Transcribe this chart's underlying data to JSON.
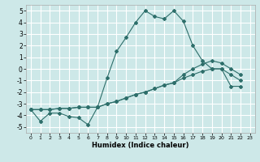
{
  "xlabel": "Humidex (Indice chaleur)",
  "bg_color": "#cde8e8",
  "grid_color": "#ffffff",
  "line_color": "#2d6e6a",
  "xlim": [
    -0.5,
    23.5
  ],
  "ylim": [
    -5.5,
    5.5
  ],
  "xticks": [
    0,
    1,
    2,
    3,
    4,
    5,
    6,
    7,
    8,
    9,
    10,
    11,
    12,
    13,
    14,
    15,
    16,
    17,
    18,
    19,
    20,
    21,
    22,
    23
  ],
  "yticks": [
    -5,
    -4,
    -3,
    -2,
    -1,
    0,
    1,
    2,
    3,
    4,
    5
  ],
  "line1_x": [
    0,
    1,
    2,
    3,
    4,
    5,
    6,
    7,
    8,
    9,
    10,
    11,
    12,
    13,
    14,
    15,
    16,
    17,
    18,
    19,
    20,
    21,
    22
  ],
  "line1_y": [
    -3.5,
    -4.5,
    -3.8,
    -3.8,
    -4.1,
    -4.2,
    -4.8,
    -3.3,
    -0.8,
    1.5,
    2.7,
    4.0,
    5.0,
    4.5,
    4.3,
    5.0,
    4.1,
    2.0,
    0.7,
    0.0,
    0.0,
    -1.5,
    -1.5
  ],
  "line2_x": [
    0,
    1,
    2,
    3,
    4,
    5,
    6,
    7,
    8,
    9,
    10,
    11,
    12,
    13,
    14,
    15,
    16,
    17,
    18,
    19,
    20,
    21,
    22
  ],
  "line2_y": [
    -3.5,
    -3.5,
    -3.5,
    -3.4,
    -3.4,
    -3.3,
    -3.3,
    -3.3,
    -3.0,
    -2.8,
    -2.5,
    -2.2,
    -2.0,
    -1.7,
    -1.4,
    -1.2,
    -0.8,
    -0.5,
    -0.2,
    0.0,
    0.0,
    -0.5,
    -1.0
  ],
  "line3_x": [
    0,
    1,
    2,
    3,
    4,
    5,
    6,
    7,
    8,
    9,
    10,
    11,
    12,
    13,
    14,
    15,
    16,
    17,
    18,
    19,
    20,
    21,
    22
  ],
  "line3_y": [
    -3.5,
    -3.5,
    -3.5,
    -3.4,
    -3.4,
    -3.3,
    -3.3,
    -3.3,
    -3.0,
    -2.8,
    -2.5,
    -2.2,
    -2.0,
    -1.7,
    -1.4,
    -1.2,
    -0.5,
    0.0,
    0.4,
    0.7,
    0.5,
    0.0,
    -0.5
  ]
}
